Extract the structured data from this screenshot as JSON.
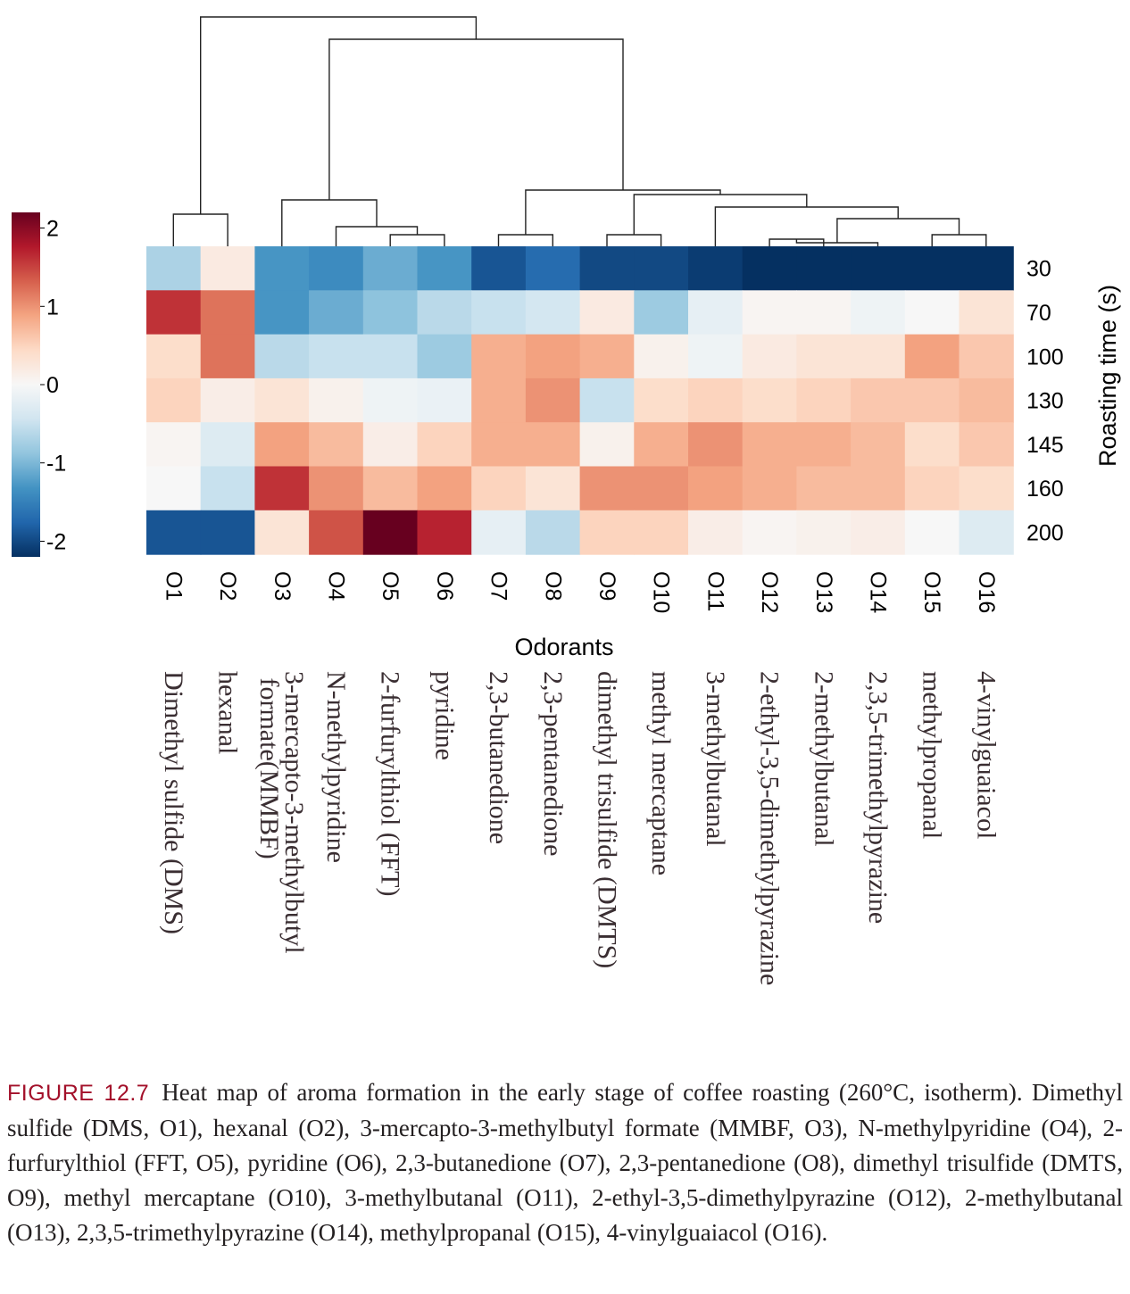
{
  "chart_data": {
    "type": "heatmap",
    "xlabel": "Odorants",
    "ylabel": "Roasting time (s)",
    "columns": [
      "O1",
      "O2",
      "O3",
      "O4",
      "O5",
      "O6",
      "O7",
      "O8",
      "O9",
      "O10",
      "O11",
      "O12",
      "O13",
      "O14",
      "O15",
      "O16"
    ],
    "rows": [
      "30",
      "70",
      "100",
      "130",
      "145",
      "160",
      "200"
    ],
    "compound_names": [
      "Dimethyl sulfide (DMS)",
      "hexanal",
      "3-mercapto-3-methylbutyl formate(MMBF)",
      "N-methylpyridine",
      "2-furfurylthiol (FFT)",
      "pyridine",
      "2,3-butanedione",
      "2,3-pentanedione",
      "dimethyl trisulfide (DMTS)",
      "methyl mercaptane",
      "3-methylbutanal",
      "2-ethyl-3,5-dimethylpyrazine",
      "2-methylbutanal",
      "2,3,5-trimethylpyrazine",
      "methylpropanal",
      "4-vinylguaiacol"
    ],
    "values": [
      [
        -0.7,
        0.2,
        -1.3,
        -1.4,
        -1.1,
        -1.3,
        -1.9,
        -1.7,
        -2.0,
        -2.0,
        -2.1,
        -2.2,
        -2.2,
        -2.2,
        -2.2,
        -2.2
      ],
      [
        1.6,
        1.2,
        -1.3,
        -1.1,
        -0.9,
        -0.6,
        -0.5,
        -0.4,
        0.2,
        -0.8,
        -0.2,
        0.05,
        0.05,
        -0.1,
        0.0,
        0.3
      ],
      [
        0.4,
        1.2,
        -0.6,
        -0.5,
        -0.5,
        -0.8,
        0.8,
        0.9,
        0.8,
        0.1,
        -0.1,
        0.2,
        0.3,
        0.3,
        0.9,
        0.6
      ],
      [
        0.5,
        0.15,
        0.3,
        0.1,
        -0.1,
        -0.15,
        0.8,
        1.0,
        -0.5,
        0.4,
        0.5,
        0.4,
        0.5,
        0.6,
        0.6,
        0.7
      ],
      [
        0.05,
        -0.3,
        0.9,
        0.7,
        0.15,
        0.5,
        0.8,
        0.8,
        0.1,
        0.8,
        1.0,
        0.8,
        0.8,
        0.7,
        0.4,
        0.6
      ],
      [
        0.0,
        -0.5,
        1.6,
        1.0,
        0.7,
        0.9,
        0.5,
        0.3,
        1.0,
        1.0,
        0.9,
        0.8,
        0.7,
        0.7,
        0.5,
        0.4
      ],
      [
        -1.9,
        -1.9,
        0.3,
        1.4,
        2.2,
        1.7,
        -0.2,
        -0.6,
        0.5,
        0.5,
        0.15,
        0.05,
        0.1,
        0.15,
        0.0,
        -0.3
      ]
    ],
    "colorbar": {
      "ticks": [
        "2",
        "1",
        "0",
        "-1",
        "-2"
      ],
      "range": [
        -2.2,
        2.2
      ],
      "colormap": "RdBu_r"
    },
    "dendrogram": "columns"
  },
  "caption": {
    "label": "FIGURE 12.7",
    "text": "Heat map of aroma formation in the early stage of coffee roasting (260°C, isotherm). Dimethyl sulfide (DMS, O1), hexanal (O2), 3-mercapto-3-methylbutyl formate (MMBF, O3), N-methylpyridine (O4), 2-furfurylthiol (FFT, O5), pyridine (O6), 2,3-butanedione (O7), 2,3-pentanedione (O8), dimethyl trisulfide (DMTS, O9), methyl mercaptane (O10), 3-methylbutanal (O11), 2-ethyl-3,5-dimethylpyrazine (O12), 2-methylbutanal (O13), 2,3,5-trimethylpyrazine (O14), methylpropanal (O15), 4-vinylguaiacol (O16)."
  }
}
